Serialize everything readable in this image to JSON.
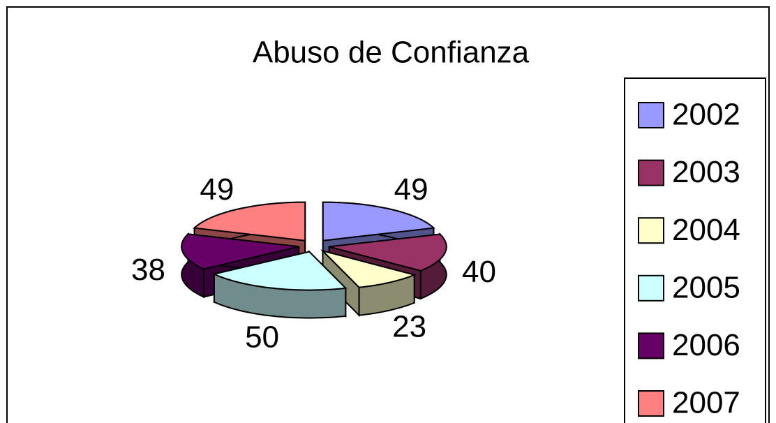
{
  "chart_data": {
    "type": "pie",
    "title": "Abuso de Confianza",
    "categories": [
      "2002",
      "2003",
      "2004",
      "2005",
      "2006",
      "2007"
    ],
    "values": [
      49,
      40,
      23,
      50,
      38,
      49
    ],
    "colors": [
      "#9999ff",
      "#993366",
      "#ffffcc",
      "#ccffff",
      "#660066",
      "#ff8080"
    ],
    "legend": "right"
  }
}
